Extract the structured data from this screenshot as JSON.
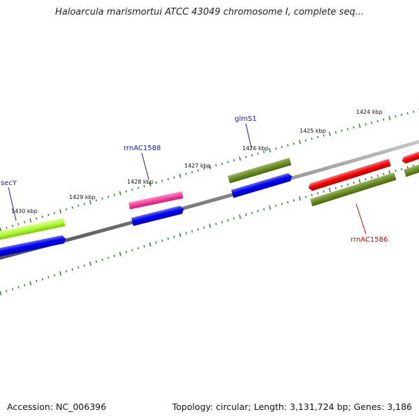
{
  "title": "Haloarcula marismortui ATCC 43049 chromosome I, complete seq...",
  "footer": {
    "accession": "Accession: NC_006396",
    "meta": "Topology: circular; Length: 3,131,724 bp; Genes: 3,186"
  },
  "ticks": [
    "1430 kbp",
    "1429 kbp",
    "1428 kbp",
    "1427 kbp",
    "1426 kbp",
    "1425 kbp",
    "1424 kbp"
  ],
  "genes": [
    {
      "name": "secY",
      "color": "#1a1aa8"
    },
    {
      "name": "rrnAC1588",
      "color": "#1a1aa8"
    },
    {
      "name": "glmS1",
      "color": "#1a1aa8"
    },
    {
      "name": "rrnAC1586",
      "color": "#cc0000"
    }
  ],
  "colors": {
    "backbone": "#808080",
    "tick_dots": "#2e8b2e",
    "forward_cds": "#6b8e23",
    "reverse_cds": "#0000ff",
    "rrna_pink": "#ff3fa0",
    "rrna_red": "#ff0000",
    "lime": "#adff2f"
  }
}
